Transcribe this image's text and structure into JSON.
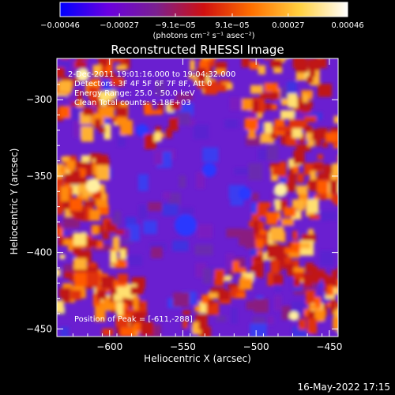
{
  "chart_data": {
    "type": "heatmap",
    "title": "Reconstructed RHESSI Image",
    "xlabel": "Heliocentric X (arcsec)",
    "ylabel": "Heliocentric Y (arcsec)",
    "xlim": [
      -636,
      -444
    ],
    "ylim": [
      -455,
      -273
    ],
    "xticks": [
      -600,
      -550,
      -500,
      -450
    ],
    "xtick_labels": [
      "−600",
      "−550",
      "−500",
      "−450"
    ],
    "yticks": [
      -300,
      -350,
      -400,
      -450
    ],
    "ytick_labels": [
      "−300",
      "−350",
      "−400",
      "−450"
    ],
    "colorbar": {
      "range": [
        -0.00046,
        0.00046
      ],
      "ticks": [
        -0.00046,
        -0.00027,
        -9.1e-05,
        9.1e-05,
        0.00027,
        0.00046
      ],
      "tick_labels": [
        "−0.00046",
        "−0.00027",
        "−9.1e−05",
        "9.1e−05",
        "0.00027",
        "0.00046"
      ],
      "units": "(photons cm⁻² s⁻¹ asec⁻²)",
      "colors": [
        "#0000ff",
        "#6a00e0",
        "#7a2090",
        "#d01010",
        "#ff7000",
        "#ffd040",
        "#ffffff"
      ]
    },
    "annotations": [
      "2-Dec-2011 19:01:16.000 to 19:04:32.000",
      "Detectors: 3F 4F 5F 6F 7F 8F, Att 0",
      "Energy Range: 25.0 - 50.0 keV",
      "Clean    Total counts: 5.18E+03"
    ],
    "peak_label": "Position of Peak = [-611,-288]",
    "peak": [
      -611,
      -288
    ],
    "grid": false
  },
  "footer": {
    "timestamp": "16-May-2022 17:15"
  }
}
